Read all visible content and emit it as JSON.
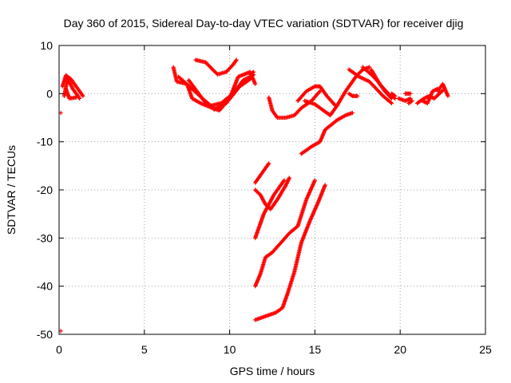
{
  "chart_data": {
    "type": "scatter",
    "title": "Day 360 of 2015, Sidereal Day-to-day VTEC variation (SDTVAR) for receiver djig",
    "xlabel": "GPS time / hours",
    "ylabel": "SDTVAR / TECUs",
    "xlim": [
      0,
      25
    ],
    "ylim": [
      -50,
      10
    ],
    "xticks": [
      0,
      5,
      10,
      15,
      20,
      25
    ],
    "yticks": [
      -50,
      -40,
      -30,
      -20,
      -10,
      0,
      10
    ],
    "grid": true,
    "marker": "plus",
    "color": "#ff0000",
    "tracks": [
      [
        [
          0.2,
          1.5
        ],
        [
          0.4,
          3.8
        ],
        [
          0.7,
          3.0
        ],
        [
          1.0,
          1.5
        ],
        [
          1.4,
          -0.5
        ]
      ],
      [
        [
          0.3,
          -0.5
        ],
        [
          0.5,
          3.2
        ],
        [
          0.8,
          1.0
        ],
        [
          1.2,
          -1.0
        ]
      ],
      [
        [
          0.4,
          1.0
        ],
        [
          0.6,
          -1.0
        ],
        [
          1.0,
          -0.8
        ]
      ],
      [
        [
          6.7,
          5.5
        ],
        [
          6.9,
          2.5
        ],
        [
          7.5,
          2.0
        ],
        [
          7.8,
          -1.0
        ],
        [
          8.3,
          -2.0
        ],
        [
          9.0,
          -3.0
        ],
        [
          9.4,
          -3.5
        ],
        [
          10.0,
          -1.0
        ],
        [
          10.5,
          3.5
        ],
        [
          11.2,
          4.5
        ],
        [
          11.5,
          2.0
        ]
      ],
      [
        [
          7.6,
          2.8
        ],
        [
          8.5,
          -1.5
        ],
        [
          9.1,
          -3.3
        ],
        [
          9.8,
          -2.0
        ],
        [
          10.6,
          1.5
        ],
        [
          11.2,
          3.0
        ],
        [
          11.4,
          4.0
        ]
      ],
      [
        [
          7.0,
          3.5
        ],
        [
          7.8,
          1.0
        ],
        [
          8.4,
          -1.0
        ],
        [
          8.9,
          -2.5
        ],
        [
          9.5,
          -2.0
        ],
        [
          10.2,
          0.0
        ],
        [
          10.8,
          2.8
        ],
        [
          11.2,
          3.5
        ]
      ],
      [
        [
          8.0,
          7.0
        ],
        [
          8.6,
          6.5
        ],
        [
          9.0,
          5.0
        ],
        [
          9.3,
          4.0
        ],
        [
          9.8,
          4.5
        ],
        [
          10.2,
          6.0
        ],
        [
          10.4,
          7.0
        ]
      ],
      [
        [
          11.2,
          4.0
        ],
        [
          11.4,
          4.5
        ]
      ],
      [
        [
          12.3,
          -0.8
        ],
        [
          12.5,
          -3.5
        ],
        [
          12.8,
          -5.0
        ],
        [
          13.3,
          -5.0
        ],
        [
          13.8,
          -4.5
        ],
        [
          14.2,
          -3.0
        ],
        [
          14.8,
          -1.5
        ],
        [
          15.3,
          0.5
        ]
      ],
      [
        [
          14.0,
          -1.5
        ],
        [
          14.5,
          0.5
        ],
        [
          15.0,
          1.5
        ],
        [
          15.3,
          1.5
        ],
        [
          15.7,
          -0.5
        ],
        [
          16.2,
          -2.5
        ]
      ],
      [
        [
          14.4,
          -1.5
        ],
        [
          15.0,
          -2.2
        ],
        [
          15.5,
          -3.5
        ],
        [
          15.9,
          -4.5
        ],
        [
          16.3,
          -2.5
        ],
        [
          16.8,
          0.5
        ],
        [
          17.4,
          3.5
        ],
        [
          17.8,
          5.0
        ],
        [
          18.2,
          5.5
        ]
      ],
      [
        [
          14.2,
          -12.5
        ],
        [
          14.8,
          -11.0
        ],
        [
          15.3,
          -10.0
        ],
        [
          15.6,
          -7.5
        ],
        [
          16.3,
          -5.5
        ],
        [
          16.8,
          -4.5
        ],
        [
          17.2,
          -4.0
        ]
      ],
      [
        [
          17.0,
          5.0
        ],
        [
          17.6,
          3.5
        ],
        [
          18.2,
          2.5
        ],
        [
          18.6,
          1.0
        ],
        [
          19.0,
          -0.5
        ],
        [
          19.5,
          -2.0
        ]
      ],
      [
        [
          17.8,
          5.5
        ],
        [
          18.3,
          4.0
        ],
        [
          18.7,
          2.5
        ],
        [
          19.1,
          0.5
        ],
        [
          19.5,
          -1.0
        ]
      ],
      [
        [
          18.3,
          5.0
        ],
        [
          18.8,
          2.0
        ],
        [
          19.3,
          0.0
        ],
        [
          19.7,
          -1.0
        ]
      ],
      [
        [
          17.0,
          0.0
        ],
        [
          17.2,
          -0.5
        ],
        [
          17.5,
          -0.5
        ]
      ],
      [
        [
          19.5,
          0.0
        ],
        [
          19.7,
          -0.5
        ]
      ],
      [
        [
          19.9,
          -1.0
        ],
        [
          20.3,
          -1.5
        ],
        [
          20.6,
          -1.0
        ]
      ],
      [
        [
          20.5,
          -2.0
        ],
        [
          20.7,
          -1.5
        ]
      ],
      [
        [
          20.3,
          0.0
        ],
        [
          20.6,
          0.0
        ]
      ],
      [
        [
          21.0,
          -2.0
        ],
        [
          21.4,
          -1.0
        ],
        [
          21.7,
          -0.5
        ],
        [
          22.0,
          -1.0
        ],
        [
          22.3,
          0.0
        ],
        [
          22.6,
          1.0
        ]
      ],
      [
        [
          21.3,
          -1.5
        ],
        [
          21.6,
          -2.0
        ],
        [
          21.9,
          0.5
        ],
        [
          22.2,
          1.0
        ]
      ],
      [
        [
          22.2,
          0.5
        ],
        [
          22.5,
          2.0
        ],
        [
          22.8,
          -0.5
        ]
      ],
      [
        [
          11.5,
          -18.5
        ],
        [
          11.8,
          -17.0
        ],
        [
          12.1,
          -15.5
        ],
        [
          12.3,
          -14.5
        ]
      ],
      [
        [
          11.5,
          -20.0
        ],
        [
          11.8,
          -21.0
        ],
        [
          12.1,
          -23.0
        ],
        [
          12.4,
          -24.0
        ],
        [
          12.8,
          -22.0
        ],
        [
          13.3,
          -19.0
        ],
        [
          13.5,
          -17.5
        ]
      ],
      [
        [
          11.5,
          -30.0
        ],
        [
          11.8,
          -27.0
        ],
        [
          12.0,
          -25.0
        ],
        [
          12.3,
          -23.0
        ],
        [
          12.6,
          -21.0
        ],
        [
          12.9,
          -19.5
        ],
        [
          13.2,
          -18.0
        ]
      ],
      [
        [
          11.5,
          -40.0
        ],
        [
          11.8,
          -37.5
        ],
        [
          12.1,
          -34.0
        ],
        [
          12.5,
          -33.0
        ],
        [
          13.0,
          -31.0
        ],
        [
          13.5,
          -29.0
        ],
        [
          14.0,
          -27.5
        ],
        [
          14.5,
          -22.0
        ],
        [
          15.0,
          -18.0
        ]
      ],
      [
        [
          11.5,
          -47.0
        ],
        [
          11.9,
          -46.5
        ],
        [
          12.3,
          -46.0
        ],
        [
          12.7,
          -45.5
        ],
        [
          13.1,
          -44.5
        ],
        [
          13.4,
          -41.5
        ],
        [
          13.8,
          -37.0
        ],
        [
          14.2,
          -31.0
        ],
        [
          14.7,
          -26.5
        ],
        [
          15.2,
          -22.5
        ],
        [
          15.6,
          -19.0
        ]
      ],
      [
        [
          0.1,
          -4.0
        ]
      ],
      [
        [
          0.1,
          -49.3
        ]
      ]
    ]
  }
}
